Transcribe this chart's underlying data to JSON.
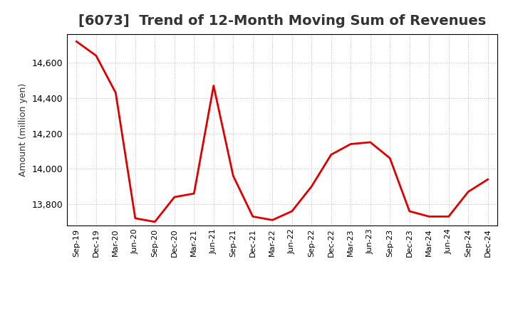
{
  "title": "[6073]  Trend of 12-Month Moving Sum of Revenues",
  "ylabel": "Amount (million yen)",
  "line_color": "#DD0000",
  "line_width": 2.0,
  "background_color": "#FFFFFF",
  "grid_color": "#BBBBBB",
  "grid_style": ":",
  "ylim": [
    13680,
    14760
  ],
  "yticks": [
    13800,
    14000,
    14200,
    14400,
    14600
  ],
  "title_color": "#333333",
  "title_fontsize": 14,
  "x_labels": [
    "Sep-19",
    "Dec-19",
    "Mar-20",
    "Jun-20",
    "Sep-20",
    "Dec-20",
    "Mar-21",
    "Jun-21",
    "Sep-21",
    "Dec-21",
    "Mar-22",
    "Jun-22",
    "Sep-22",
    "Dec-22",
    "Mar-23",
    "Jun-23",
    "Sep-23",
    "Dec-23",
    "Mar-24",
    "Jun-24",
    "Sep-24",
    "Dec-24"
  ],
  "values": [
    14720,
    14640,
    14430,
    13720,
    13700,
    13840,
    13860,
    14470,
    13960,
    13730,
    13710,
    13760,
    13900,
    14080,
    14140,
    14150,
    14060,
    13760,
    13730,
    13730,
    13870,
    13940
  ]
}
